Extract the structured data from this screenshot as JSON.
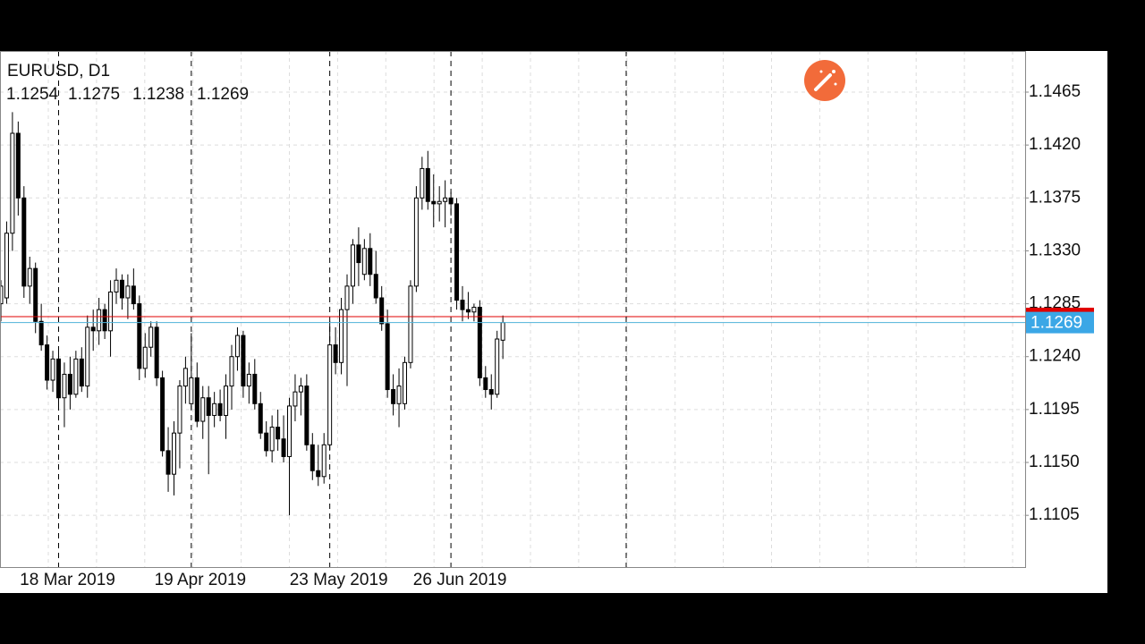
{
  "chart_data": {
    "type": "candlestick",
    "title": "EURUSD, D1",
    "ylim": [
      1.1061,
      1.15
    ],
    "yticks": [
      1.1465,
      {
        "value": 1.142,
        "label": "1.1420"
      },
      1.1375,
      {
        "value": 1.133,
        "label": "1.1330"
      },
      1.1285,
      {
        "value": 1.124,
        "label": "1.1240"
      },
      1.1195,
      {
        "value": 1.115,
        "label": "1.1150"
      },
      1.1105
    ],
    "grid": true,
    "bull_color": "#ffffff",
    "bear_color": "#000000",
    "ask_line": 1.1274,
    "categories": [
      null,
      null,
      null,
      null,
      null,
      null,
      null,
      null,
      null,
      null,
      "18 Mar 2019",
      null,
      null,
      null,
      null,
      null,
      null,
      null,
      null,
      null,
      null,
      null,
      null,
      null,
      null,
      null,
      null,
      null,
      null,
      null,
      null,
      null,
      null,
      "19 Apr 2019",
      null,
      null,
      null,
      null,
      null,
      null,
      null,
      null,
      null,
      null,
      null,
      null,
      null,
      null,
      null,
      null,
      null,
      null,
      null,
      null,
      null,
      null,
      null,
      "23 May 2019",
      null,
      null,
      null,
      null,
      null,
      null,
      null,
      null,
      null,
      null,
      null,
      null,
      null,
      null,
      null,
      null,
      null,
      null,
      null,
      null,
      "26 Jun 2019",
      null,
      null,
      null,
      null,
      null,
      null,
      null,
      null,
      null
    ],
    "open": [
      1.1285,
      1.129,
      1.1345,
      1.143,
      1.1375,
      1.13,
      1.1315,
      1.127,
      1.125,
      1.122,
      1.1238,
      1.1205,
      1.1225,
      1.1208,
      1.1238,
      1.1215,
      1.1265,
      1.1262,
      1.128,
      1.1262,
      1.1295,
      1.1305,
      1.129,
      1.13,
      1.1285,
      1.123,
      1.1248,
      1.1265,
      1.1222,
      1.116,
      1.114,
      1.1175,
      1.1215,
      1.12,
      1.1222,
      1.1185,
      1.1205,
      1.119,
      1.12,
      1.119,
      1.1215,
      1.124,
      1.1258,
      1.1215,
      1.1225,
      1.12,
      1.1175,
      1.116,
      1.118,
      1.117,
      1.1155,
      1.1198,
      1.121,
      1.1215,
      1.1165,
      1.1143,
      1.1138,
      1.1165,
      1.125,
      1.1235,
      1.128,
      1.13,
      1.1335,
      1.131,
      1.1332,
      1.131,
      1.129,
      1.1268,
      1.1212,
      1.12,
      1.12,
      1.1235,
      1.13,
      1.1375,
      1.14,
      1.1372,
      1.137,
      1.1372,
      1.1375,
      1.137,
      1.1288,
      1.128,
      1.1278,
      1.1282,
      1.1222,
      1.1212,
      1.1208,
      1.1254
    ],
    "high": [
      1.1305,
      1.1355,
      1.1448,
      1.144,
      1.1385,
      1.1325,
      1.132,
      1.1285,
      1.1258,
      1.1245,
      1.1245,
      1.1235,
      1.124,
      1.1245,
      1.1248,
      1.1275,
      1.128,
      1.129,
      1.1285,
      1.1305,
      1.1315,
      1.131,
      1.131,
      1.1315,
      1.1292,
      1.126,
      1.127,
      1.127,
      1.1228,
      1.118,
      1.1185,
      1.122,
      1.124,
      1.126,
      1.1235,
      1.1215,
      1.1215,
      1.121,
      1.1212,
      1.1225,
      1.125,
      1.1265,
      1.1262,
      1.1235,
      1.1238,
      1.121,
      1.1185,
      1.119,
      1.1195,
      1.119,
      1.1205,
      1.1225,
      1.1222,
      1.1225,
      1.1175,
      1.1165,
      1.1175,
      1.127,
      1.1265,
      1.129,
      1.131,
      1.134,
      1.135,
      1.134,
      1.1345,
      1.133,
      1.13,
      1.128,
      1.1225,
      1.123,
      1.124,
      1.1305,
      1.1385,
      1.141,
      1.1415,
      1.1395,
      1.1385,
      1.139,
      1.138,
      1.1375,
      1.13,
      1.1295,
      1.1285,
      1.1288,
      1.1232,
      1.1225,
      1.1262,
      1.1275
    ],
    "low": [
      1.127,
      1.1285,
      1.133,
      1.136,
      1.129,
      1.1285,
      1.126,
      1.1245,
      1.1212,
      1.121,
      1.1198,
      1.118,
      1.1195,
      1.1205,
      1.121,
      1.1205,
      1.1245,
      1.125,
      1.1255,
      1.124,
      1.1285,
      1.128,
      1.1272,
      1.128,
      1.122,
      1.1222,
      1.124,
      1.1215,
      1.1155,
      1.1125,
      1.1122,
      1.1145,
      1.12,
      1.1195,
      1.118,
      1.117,
      1.114,
      1.118,
      1.1185,
      1.117,
      1.1195,
      1.1228,
      1.1205,
      1.12,
      1.1195,
      1.117,
      1.1155,
      1.115,
      1.116,
      1.115,
      1.1105,
      1.1185,
      1.119,
      1.116,
      1.1135,
      1.113,
      1.1132,
      1.116,
      1.1225,
      1.1225,
      1.1215,
      1.1285,
      1.13,
      1.1305,
      1.13,
      1.1285,
      1.1262,
      1.1205,
      1.119,
      1.118,
      1.1195,
      1.123,
      1.1295,
      1.1365,
      1.1365,
      1.135,
      1.1355,
      1.135,
      1.136,
      1.128,
      1.127,
      1.1272,
      1.127,
      1.1215,
      1.1205,
      1.1195,
      1.1205,
      1.1238
    ],
    "close": [
      1.13,
      1.1345,
      1.143,
      1.1375,
      1.13,
      1.1315,
      1.127,
      1.125,
      1.122,
      1.1238,
      1.1205,
      1.1225,
      1.1208,
      1.1238,
      1.1215,
      1.1265,
      1.1262,
      1.128,
      1.1262,
      1.1295,
      1.1305,
      1.129,
      1.13,
      1.1285,
      1.123,
      1.1248,
      1.1265,
      1.1222,
      1.116,
      1.114,
      1.1175,
      1.1215,
      1.123,
      1.1222,
      1.1185,
      1.1205,
      1.119,
      1.12,
      1.119,
      1.1215,
      1.124,
      1.1258,
      1.1215,
      1.1225,
      1.12,
      1.1175,
      1.116,
      1.118,
      1.117,
      1.1155,
      1.1198,
      1.121,
      1.1215,
      1.1165,
      1.1143,
      1.1138,
      1.1165,
      1.125,
      1.1235,
      1.128,
      1.13,
      1.1335,
      1.132,
      1.1332,
      1.131,
      1.129,
      1.1268,
      1.1212,
      1.12,
      1.1215,
      1.1235,
      1.13,
      1.1375,
      1.14,
      1.1372,
      1.137,
      1.1372,
      1.1375,
      1.137,
      1.1288,
      1.128,
      1.1278,
      1.1282,
      1.1222,
      1.1212,
      1.1208,
      1.1255,
      1.1269
    ]
  }
}
